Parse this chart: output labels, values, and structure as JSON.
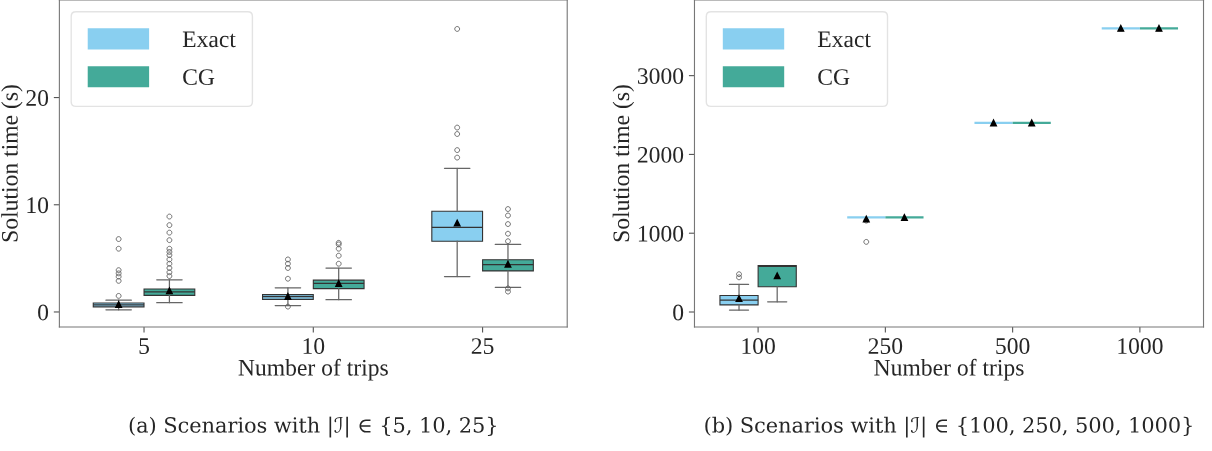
{
  "chart_data": [
    {
      "type": "box",
      "categories": [
        "5",
        "10",
        "25"
      ],
      "xlabel": "Number of trips",
      "ylabel": "Solution time (s)",
      "ylim": [
        -1.4,
        29.1
      ],
      "yticks": [
        0,
        10,
        20
      ],
      "legend": "top left",
      "marker": "triangle",
      "annotations": [
        "(a) Scenarios with |ℐ| ∈ {5, 10, 25}"
      ],
      "series": [
        {
          "name": "Exact",
          "color": "#89cff0",
          "boxes": [
            {
              "low": 0.2,
              "q1": 0.48,
              "median": 0.66,
              "q3": 0.83,
              "high": 1.1,
              "mean": 0.69,
              "outliers": [
                1.5,
                2.9,
                3.3,
                3.6,
                3.9,
                5.9,
                6.8
              ]
            },
            {
              "low": 0.6,
              "q1": 1.17,
              "median": 1.42,
              "q3": 1.62,
              "high": 2.25,
              "mean": 1.45,
              "outliers": [
                0.5,
                3.1,
                4.1,
                4.5,
                4.9
              ]
            },
            {
              "low": 3.3,
              "q1": 6.6,
              "median": 7.9,
              "q3": 9.4,
              "high": 13.4,
              "mean": 8.3,
              "outliers": [
                14.4,
                15.1,
                16.6,
                17.2,
                26.4
              ]
            }
          ]
        },
        {
          "name": "CG",
          "color": "#44aa99",
          "boxes": [
            {
              "low": 0.86,
              "q1": 1.55,
              "median": 1.87,
              "q3": 2.14,
              "high": 3.0,
              "mean": 1.97,
              "outliers": [
                3.35,
                3.7,
                4.1,
                4.5,
                4.9,
                5.3,
                5.6,
                5.9,
                6.7,
                7.4,
                8.1,
                8.9
              ]
            },
            {
              "low": 1.14,
              "q1": 2.18,
              "median": 2.66,
              "q3": 2.97,
              "high": 4.1,
              "mean": 2.66,
              "outliers": [
                4.5,
                5.25,
                5.9,
                6.3,
                6.45
              ]
            },
            {
              "low": 2.3,
              "q1": 3.83,
              "median": 4.42,
              "q3": 4.87,
              "high": 6.3,
              "mean": 4.46,
              "outliers": [
                1.9,
                2.2,
                6.6,
                7.3,
                8.2,
                9.0,
                9.6
              ]
            }
          ]
        }
      ]
    },
    {
      "type": "box",
      "categories": [
        "100",
        "250",
        "500",
        "1000"
      ],
      "xlabel": "Number of trips",
      "ylabel": "Solution time (s)",
      "ylim": [
        -190,
        3960
      ],
      "yticks": [
        0,
        1000,
        2000,
        3000
      ],
      "legend": "top left",
      "marker": "triangle",
      "annotations": [
        "(b) Scenarios with |ℐ| ∈ {100, 250, 500, 1000}"
      ],
      "series": [
        {
          "name": "Exact",
          "color": "#89cff0",
          "boxes": [
            {
              "low": 25,
              "q1": 90,
              "median": 150,
              "q3": 210,
              "high": 350,
              "mean": 170,
              "outliers": [
                440,
                480
              ]
            },
            {
              "low": 1200,
              "q1": 1200,
              "median": 1200,
              "q3": 1200,
              "high": 1200,
              "mean": 1180,
              "outliers": [
                890,
                1160
              ]
            },
            {
              "low": 2400,
              "q1": 2400,
              "median": 2400,
              "q3": 2400,
              "high": 2400,
              "mean": 2400
            },
            {
              "low": 3600,
              "q1": 3600,
              "median": 3600,
              "q3": 3600,
              "high": 3600,
              "mean": 3600
            }
          ]
        },
        {
          "name": "CG",
          "color": "#44aa99",
          "boxes": [
            {
              "low": 130,
              "q1": 320,
              "median": 580,
              "q3": 590,
              "high": 590,
              "mean": 460
            },
            {
              "low": 1200,
              "q1": 1200,
              "median": 1200,
              "q3": 1200,
              "high": 1200,
              "mean": 1200
            },
            {
              "low": 2400,
              "q1": 2400,
              "median": 2400,
              "q3": 2400,
              "high": 2400,
              "mean": 2400
            },
            {
              "low": 3600,
              "q1": 3600,
              "median": 3600,
              "q3": 3600,
              "high": 3600,
              "mean": 3600
            }
          ]
        }
      ]
    }
  ]
}
